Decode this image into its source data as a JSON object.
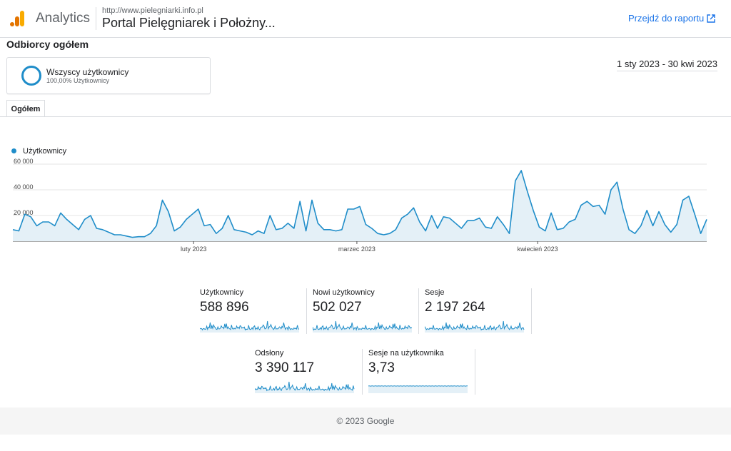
{
  "header": {
    "app_name": "Analytics",
    "site_url": "http://www.pielegniarki.info.pl",
    "site_name": "Portal Pielęgniarek i Położny...",
    "report_link": "Przejdź do raportu"
  },
  "section_title": "Odbiorcy ogółem",
  "segment": {
    "name": "Wszyscy użytkownicy",
    "share": "100,00% Użytkownicy"
  },
  "date_range": "1 sty 2023 - 30 kwi 2023",
  "tab_label": "Ogółem",
  "chart_data": {
    "type": "area",
    "series": [
      {
        "name": "Użytkownicy",
        "values": [
          9000,
          8000,
          21000,
          19000,
          12000,
          15000,
          15000,
          12000,
          22000,
          17000,
          13000,
          9000,
          17000,
          20000,
          10000,
          9000,
          7000,
          5000,
          5000,
          4000,
          3000,
          3500,
          3500,
          6000,
          12000,
          32000,
          23000,
          8000,
          11000,
          17000,
          21000,
          25000,
          12000,
          13000,
          6000,
          10000,
          20000,
          9000,
          8000,
          7000,
          5000,
          8000,
          6000,
          20000,
          9000,
          10000,
          14000,
          10000,
          31000,
          8000,
          32000,
          14000,
          9000,
          9000,
          8000,
          9000,
          25000,
          25000,
          27000,
          13000,
          10000,
          6000,
          5000,
          6000,
          9000,
          18000,
          21000,
          26000,
          15000,
          8000,
          20000,
          10000,
          19000,
          18000,
          14000,
          10000,
          16000,
          16000,
          18000,
          11000,
          10000,
          19000,
          13000,
          6000,
          47000,
          55000,
          39000,
          24000,
          11000,
          8000,
          22000,
          9000,
          10000,
          15000,
          17000,
          28000,
          31000,
          27000,
          28000,
          21000,
          40000,
          46000,
          25000,
          9000,
          6000,
          12000,
          24000,
          12000,
          23000,
          13000,
          7000,
          13000,
          32000,
          35000,
          21000,
          6000,
          17000
        ]
      }
    ],
    "x_ticks": [
      "luty 2023",
      "marzec 2023",
      "kwiecień 2023"
    ],
    "y_ticks": [
      "60 000",
      "40 000",
      "20 000"
    ],
    "ylim": [
      0,
      60000
    ],
    "grid": true,
    "legend": "top-left"
  },
  "kpis": [
    {
      "label": "Użytkownicy",
      "value": "588 896"
    },
    {
      "label": "Nowi użytkownicy",
      "value": "502 027"
    },
    {
      "label": "Sesje",
      "value": "2 197 264"
    },
    {
      "label": "Odsłony",
      "value": "3 390 117"
    },
    {
      "label": "Sesje na użytkownika",
      "value": "3,73"
    }
  ],
  "footer": "© 2023 Google",
  "colors": {
    "accent": "#1f8dc9",
    "link": "#1a73e8",
    "area_fill": "#e4f0f7"
  }
}
